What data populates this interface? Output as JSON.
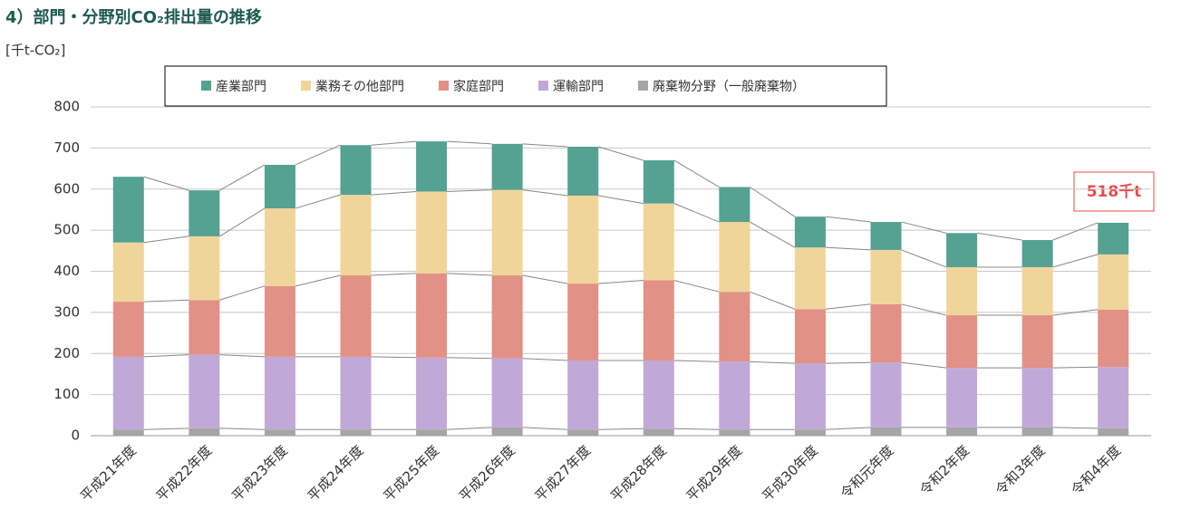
{
  "chart_data": {
    "type": "stacked_bar",
    "title": "4）部門・分野別CO₂排出量の推移",
    "y_axis_label": "[千t-CO₂]",
    "annotation": "518千t",
    "categories": [
      "平成21年度",
      "平成22年度",
      "平成23年度",
      "平成24年度",
      "平成25年度",
      "平成26年度",
      "平成27年度",
      "平成28年度",
      "平成29年度",
      "平成30年度",
      "令和元年度",
      "令和2年度",
      "令和3年度",
      "令和4年度"
    ],
    "series": [
      {
        "name": "廃棄物分野（一般廃棄物）",
        "color": "#a5a5a5",
        "values": [
          15,
          18,
          15,
          15,
          15,
          20,
          15,
          17,
          15,
          15,
          20,
          20,
          20,
          18
        ]
      },
      {
        "name": "運輸部門",
        "color": "#c0a9d6",
        "values": [
          177,
          179,
          177,
          177,
          175,
          168,
          168,
          166,
          165,
          161,
          158,
          145,
          145,
          149
        ]
      },
      {
        "name": "家庭部門",
        "color": "#e29186",
        "values": [
          134,
          133,
          172,
          198,
          205,
          202,
          187,
          195,
          170,
          132,
          142,
          128,
          128,
          140
        ]
      },
      {
        "name": "業務その他部門",
        "color": "#f0d59a",
        "values": [
          144,
          155,
          189,
          196,
          199,
          208,
          214,
          187,
          170,
          150,
          132,
          117,
          117,
          134
        ]
      },
      {
        "name": "産業部門",
        "color": "#55a192",
        "values": [
          160,
          112,
          106,
          121,
          122,
          112,
          119,
          105,
          85,
          75,
          68,
          83,
          66,
          77
        ]
      }
    ],
    "legend_order": [
      4,
      3,
      2,
      1,
      0
    ],
    "ylim": [
      0,
      800
    ],
    "yticks": [
      0,
      100,
      200,
      300,
      400,
      500,
      600,
      700,
      800
    ],
    "grid": true
  }
}
